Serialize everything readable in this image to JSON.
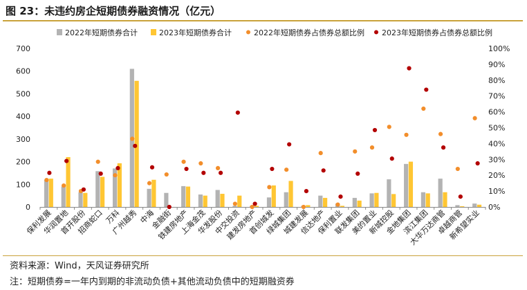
{
  "figure_title": "图 23：未违约房企短期债券融资情况（亿元）",
  "source_text": "资料来源：Wind，天风证券研究所",
  "note_text": "注：短期债券=一年内到期的非流动负债+其他流动负债中的短期融资券",
  "colors": {
    "bar2022": "#b3b3b3",
    "bar2023": "#ffc633",
    "dot2022": "#f28e2b",
    "dot2023": "#b30000",
    "rule": "#c9a23a"
  },
  "chart_data": {
    "type": "bar",
    "title": "",
    "categories": [
      "保利发展",
      "华润置地",
      "首开股份",
      "招商蛇口",
      "万科",
      "广州越秀",
      "中海",
      "金融街",
      "铁建房地产",
      "上海金茂",
      "华发股份",
      "中交投资",
      "建发房地产",
      "首创城发",
      "绿城集团",
      "城建发展",
      "信达地产",
      "保利置业",
      "联发集团",
      "美的置业",
      "新城控股",
      "金地集团",
      "滨江集团",
      "大华万达商管",
      "卓越商管",
      "新希望实业"
    ],
    "series": [
      {
        "name": "2022年短期债券合计",
        "type": "bar",
        "axis": "left",
        "values": [
          120,
          90,
          65,
          158,
          170,
          610,
          80,
          62,
          92,
          55,
          75,
          5,
          5,
          42,
          65,
          5,
          50,
          15,
          40,
          60,
          122,
          190,
          65,
          125,
          8,
          15
        ]
      },
      {
        "name": "2023年短期债券合计",
        "type": "bar",
        "axis": "left",
        "values": [
          125,
          220,
          62,
          133,
          193,
          557,
          120,
          0,
          90,
          50,
          58,
          50,
          5,
          95,
          115,
          8,
          40,
          5,
          28,
          62,
          57,
          200,
          60,
          65,
          3,
          10
        ]
      },
      {
        "name": "2022年短期债券占债券总额比例",
        "type": "scatter",
        "axis": "right",
        "values": [
          0.17,
          0.135,
          0.1,
          0.285,
          0.2,
          0.43,
          0.15,
          0.205,
          0.285,
          0.275,
          0.245,
          0.02,
          0.0,
          0.125,
          0.235,
          0.0,
          0.34,
          0.015,
          0.35,
          0.375,
          0.505,
          0.455,
          0.62,
          0.46,
          0.24,
          0.56
        ]
      },
      {
        "name": "2023年短期债券占债券总额比例",
        "type": "scatter",
        "axis": "right",
        "values": [
          0.215,
          0.29,
          0.11,
          0.21,
          0.245,
          0.385,
          0.25,
          0.0,
          0.24,
          0.215,
          0.215,
          0.595,
          0.02,
          0.24,
          0.395,
          0.1,
          0.23,
          0.065,
          0.21,
          0.485,
          0.305,
          0.875,
          0.74,
          0.375,
          0.065,
          0.275
        ]
      }
    ],
    "ylim": [
      0,
      700
    ],
    "yticks": [
      "0",
      "100",
      "200",
      "300",
      "400",
      "500",
      "600",
      "700"
    ],
    "y2lim": [
      0,
      1
    ],
    "y2ticks": [
      "0%",
      "10%",
      "20%",
      "30%",
      "40%",
      "50%",
      "60%",
      "70%",
      "80%",
      "90%",
      "100%"
    ],
    "legend_position": "top",
    "grid": false
  }
}
